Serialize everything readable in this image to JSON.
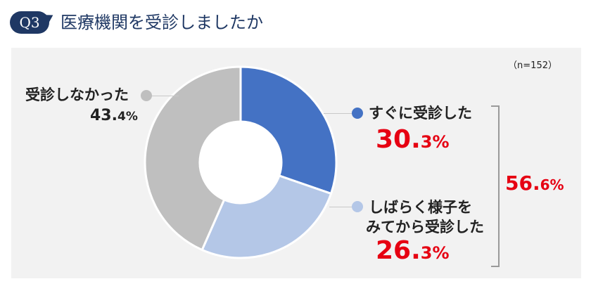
{
  "header": {
    "badge": "Q3",
    "title": "医療機関を受診しましたか"
  },
  "sample": "（n=152）",
  "chart_data": {
    "type": "pie",
    "donut": true,
    "segments": [
      {
        "name": "すぐに受診した",
        "value": 30.3,
        "color": "#4472c4"
      },
      {
        "name": "しばらく様子を みてから受診した",
        "value": 26.3,
        "color": "#b4c7e7"
      },
      {
        "name": "受診しなかった",
        "value": 43.4,
        "color": "#bfbfbf"
      }
    ],
    "group_total": {
      "value": 56.6
    }
  },
  "labels": {
    "seg1": {
      "name": "すぐに受診した",
      "int": "30.",
      "dec": "3%"
    },
    "seg2": {
      "line1": "しばらく様子を",
      "line2": "みてから受診した",
      "int": "26.",
      "dec": "3%"
    },
    "seg3": {
      "name": "受診しなかった",
      "int": "43.",
      "dec": "4%"
    },
    "total": {
      "int": "56.",
      "dec": "6%"
    }
  }
}
